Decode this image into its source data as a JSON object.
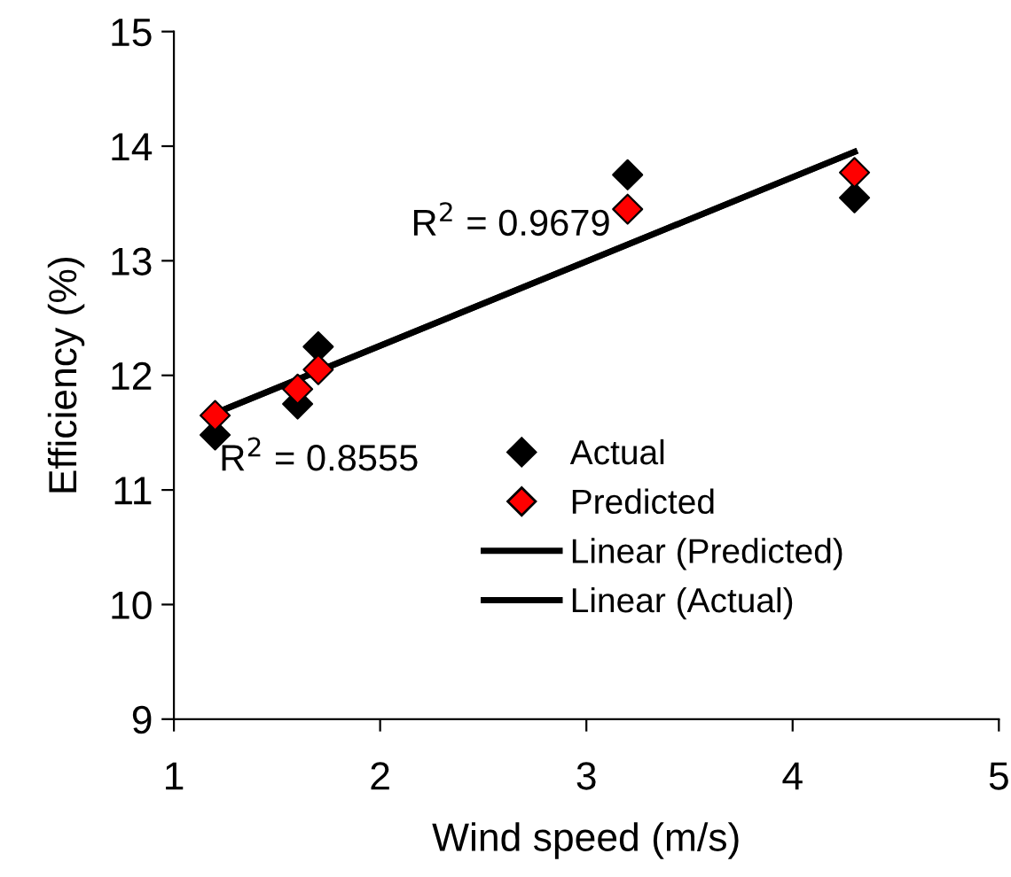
{
  "chart_data": {
    "type": "scatter",
    "xlabel": "Wind speed (m/s)",
    "ylabel": "Efficiency (%)",
    "xlim": [
      1,
      5
    ],
    "xticks": [
      1,
      2,
      3,
      4,
      5
    ],
    "ylim": [
      9,
      15
    ],
    "yticks": [
      9,
      10,
      11,
      12,
      13,
      14,
      15
    ],
    "grid": false,
    "legend": "bottom right",
    "series": [
      {
        "name": "Actual",
        "marker": "diamond",
        "color": "#000000",
        "x": [
          1.2,
          1.6,
          1.7,
          3.2,
          4.3
        ],
        "values": [
          11.48,
          11.75,
          12.25,
          13.75,
          13.55
        ]
      },
      {
        "name": "Predicted",
        "marker": "diamond",
        "color": "#ff0000",
        "x": [
          1.2,
          1.6,
          1.7,
          3.2,
          4.3
        ],
        "values": [
          11.65,
          11.88,
          12.05,
          13.45,
          13.77
        ]
      },
      {
        "name": "Linear (Predicted)",
        "type": "line",
        "color": "#000000",
        "x": [
          1.2,
          4.3
        ],
        "values": [
          11.67,
          13.95
        ]
      },
      {
        "name": "Linear (Actual)",
        "type": "line",
        "color": "#000000",
        "x": [
          1.2,
          4.3
        ],
        "values": [
          11.67,
          13.95
        ]
      }
    ],
    "annotations": [
      "R$^{2}$ = 0.9679",
      "R$^{2}$ = 0.8555"
    ]
  }
}
